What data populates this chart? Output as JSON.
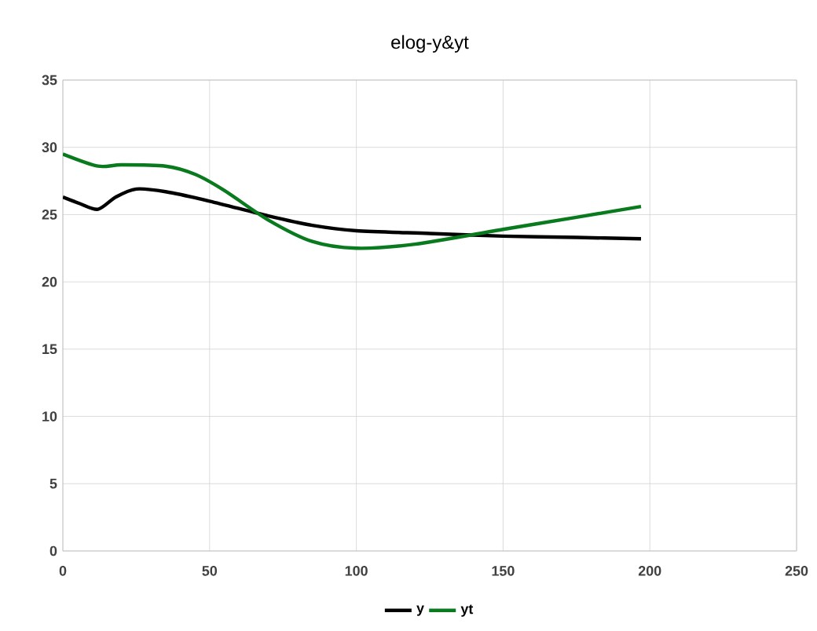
{
  "chart_data": {
    "type": "line",
    "title": "elog-y&yt",
    "xlim": [
      0,
      250
    ],
    "xticks": [
      0,
      50,
      100,
      150,
      200,
      250
    ],
    "ylim": [
      0,
      35
    ],
    "yticks": [
      0,
      5,
      10,
      15,
      20,
      25,
      30,
      35
    ],
    "grid": true,
    "legend": "bottom",
    "marker": "none",
    "line_style": "solid",
    "series": [
      {
        "name": "y",
        "color": "#000000",
        "x": [
          0,
          6,
          12,
          18,
          25,
          35,
          50,
          70,
          85,
          100,
          125,
          150,
          175,
          197
        ],
        "values": [
          26.3,
          25.8,
          25.4,
          26.3,
          26.9,
          26.7,
          26.0,
          24.9,
          24.2,
          23.8,
          23.6,
          23.4,
          23.3,
          23.2
        ]
      },
      {
        "name": "yt",
        "color": "#0a7a1e",
        "x": [
          0,
          12,
          20,
          35,
          45,
          55,
          70,
          85,
          100,
          120,
          150,
          175,
          197
        ],
        "values": [
          29.5,
          28.6,
          28.7,
          28.6,
          28.0,
          26.8,
          24.6,
          23.0,
          22.5,
          22.8,
          23.9,
          24.8,
          25.6
        ]
      }
    ]
  }
}
